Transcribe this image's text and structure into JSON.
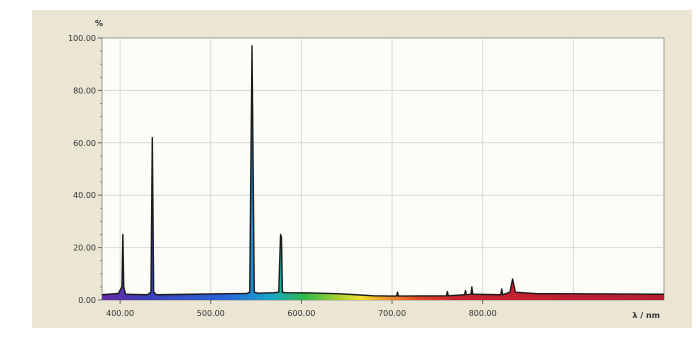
{
  "chart_data": {
    "type": "line",
    "title": "",
    "xlabel": "λ / nm",
    "ylabel": "%",
    "xlim": [
      380,
      1000
    ],
    "ylim": [
      0,
      100
    ],
    "grid": true,
    "x_ticks": [
      {
        "value": 400,
        "label": "400.00"
      },
      {
        "value": 500,
        "label": "500.00"
      },
      {
        "value": 600,
        "label": "600.00"
      },
      {
        "value": 700,
        "label": "700.00"
      },
      {
        "value": 800,
        "label": "800.00"
      }
    ],
    "y_ticks": [
      {
        "value": 0,
        "label": "0.00"
      },
      {
        "value": 20,
        "label": "20.00"
      },
      {
        "value": 40,
        "label": "40.00"
      },
      {
        "value": 60,
        "label": "60.00"
      },
      {
        "value": 80,
        "label": "80.00"
      },
      {
        "value": 100,
        "label": "100.00"
      }
    ],
    "series": [
      {
        "values": [
          [
            380,
            2.0
          ],
          [
            398,
            2.5
          ],
          [
            402,
            5
          ],
          [
            403,
            25
          ],
          [
            404,
            5
          ],
          [
            406,
            2.2
          ],
          [
            430,
            2.0
          ],
          [
            434,
            3
          ],
          [
            435.5,
            62
          ],
          [
            437,
            3
          ],
          [
            440,
            2.0
          ],
          [
            480,
            2.2
          ],
          [
            520,
            2.4
          ],
          [
            540,
            2.5
          ],
          [
            543,
            3
          ],
          [
            545.5,
            97
          ],
          [
            548,
            3
          ],
          [
            552,
            2.6
          ],
          [
            570,
            2.8
          ],
          [
            575,
            3
          ],
          [
            577,
            25
          ],
          [
            578,
            24
          ],
          [
            579,
            3
          ],
          [
            582,
            2.8
          ],
          [
            610,
            2.7
          ],
          [
            640,
            2.4
          ],
          [
            660,
            2.0
          ],
          [
            680,
            1.6
          ],
          [
            700,
            1.5
          ],
          [
            705,
            1.5
          ],
          [
            706,
            3
          ],
          [
            707,
            1.5
          ],
          [
            760,
            1.6
          ],
          [
            761,
            3.2
          ],
          [
            762,
            1.6
          ],
          [
            780,
            2.0
          ],
          [
            781,
            3.6
          ],
          [
            782,
            2.0
          ],
          [
            787,
            2.2
          ],
          [
            788,
            5.0
          ],
          [
            789,
            2.2
          ],
          [
            820,
            2.0
          ],
          [
            821,
            4.2
          ],
          [
            822,
            2.0
          ],
          [
            830,
            3.0
          ],
          [
            833,
            8.0
          ],
          [
            836,
            3.0
          ],
          [
            860,
            2.4
          ],
          [
            880,
            2.4
          ],
          [
            1000,
            2.2
          ]
        ]
      }
    ]
  }
}
